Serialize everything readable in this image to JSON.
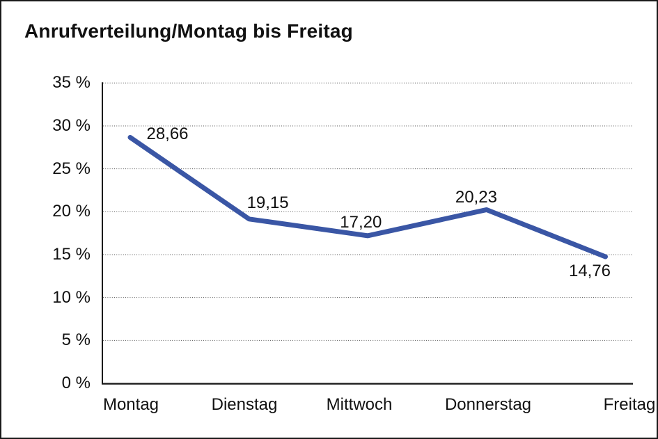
{
  "chart_data": {
    "type": "line",
    "title": "Anrufverteilung/Montag bis Freitag",
    "categories": [
      "Montag",
      "Dienstag",
      "Mittwoch",
      "Donnerstag",
      "Freitag"
    ],
    "values": [
      28.66,
      19.15,
      17.2,
      20.23,
      14.76
    ],
    "data_labels": [
      "28,66",
      "19,15",
      "17,20",
      "20,23",
      "14,76"
    ],
    "y_tick_labels": [
      "35 %",
      "30 %",
      "25 %",
      "20 %",
      "15 %",
      "10 %",
      "5 %",
      "0 %"
    ],
    "ylim": [
      0,
      35
    ],
    "y_step": 5,
    "legend": "none",
    "grid": "horizontal-dotted",
    "line_color": "#3A56A5",
    "axis_color": "#1a1a1a",
    "grid_color": "#555555",
    "text_color": "#111111",
    "background": "#ffffff"
  }
}
